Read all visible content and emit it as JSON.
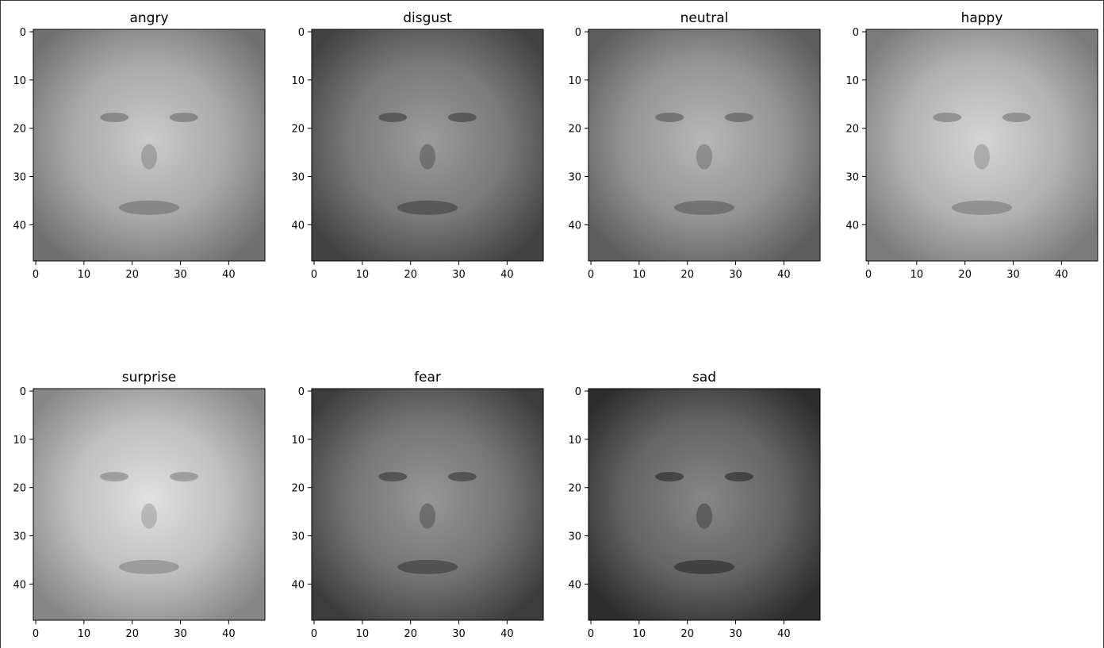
{
  "figure": {
    "image_size": 48,
    "x_ticks": [
      "0",
      "10",
      "20",
      "30",
      "40"
    ],
    "y_ticks": [
      "0",
      "10",
      "20",
      "30",
      "40"
    ],
    "panels": [
      {
        "title": "angry",
        "tone": "#9e9e9e"
      },
      {
        "title": "disgust",
        "tone": "#6f6f6f"
      },
      {
        "title": "neutral",
        "tone": "#8a8a8a"
      },
      {
        "title": "happy",
        "tone": "#a8a8a8"
      },
      {
        "title": "surprise",
        "tone": "#b4b4b4"
      },
      {
        "title": "fear",
        "tone": "#6a6a6a"
      },
      {
        "title": "sad",
        "tone": "#5a5a5a"
      }
    ]
  }
}
